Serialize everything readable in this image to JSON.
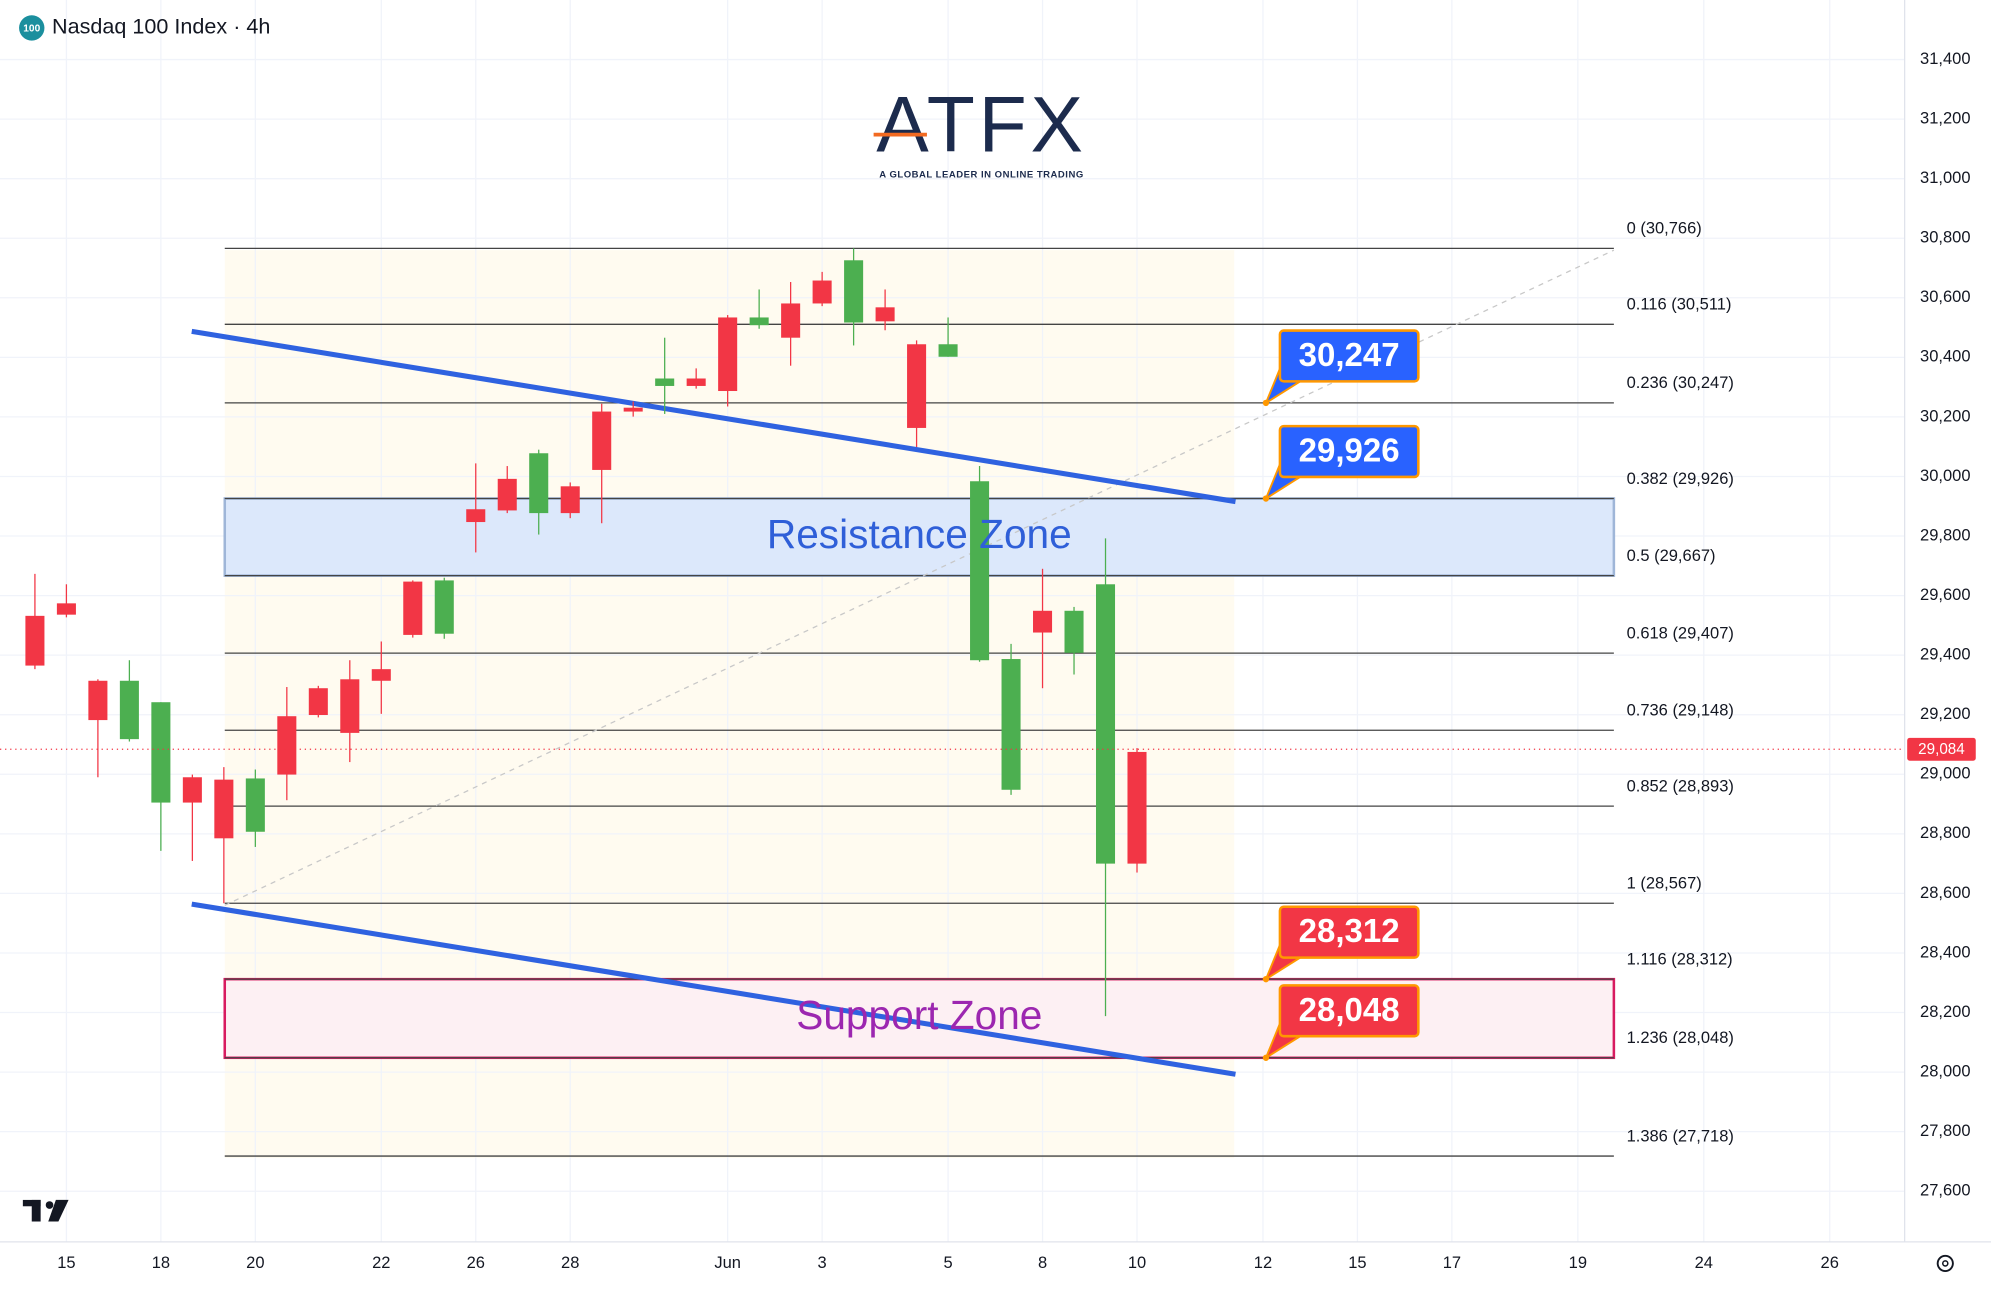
{
  "chart_data": {
    "type": "candlestick",
    "title": "Nasdaq 100 Index · 4h",
    "symbol_badge": "100",
    "categories": [
      null,
      "15",
      null,
      null,
      "18",
      null,
      null,
      "20",
      null,
      null,
      null,
      "22",
      null,
      null,
      "26",
      null,
      null,
      "28",
      null,
      null,
      null,
      null,
      "Jun",
      null,
      null,
      "3",
      null,
      null,
      null,
      "5",
      null,
      null,
      "8",
      null,
      null,
      "10",
      null,
      null,
      null,
      "12",
      null,
      null,
      "15",
      null,
      null,
      "17",
      null,
      null,
      null,
      "19",
      null,
      null,
      null,
      "24",
      null,
      null,
      null,
      "26",
      null,
      null
    ],
    "open": [
      29532,
      29574,
      29314,
      29118,
      28905,
      28990,
      28982,
      28807,
      29195,
      29289,
      29319,
      29353,
      29647,
      29472,
      29890,
      29992,
      29877,
      29967,
      30218,
      30231,
      30304,
      30329,
      30534,
      30508,
      30581,
      30658,
      30517,
      30568,
      30444,
      30402,
      29383,
      28948,
      29549,
      29408,
      28700,
      29075,
      null,
      null,
      null,
      null,
      null,
      null,
      null,
      null,
      null,
      null,
      null,
      null,
      null,
      null,
      null,
      null,
      null,
      null,
      null,
      null,
      null,
      null,
      null,
      null
    ],
    "high": [
      29673,
      29638,
      29319,
      29383,
      29242,
      28999,
      29024,
      29016,
      29293,
      29297,
      29383,
      29446,
      29651,
      29660,
      30044,
      30035,
      30090,
      29980,
      30244,
      30252,
      30466,
      30363,
      30542,
      30628,
      30653,
      30687,
      30766,
      30628,
      30457,
      30534,
      30035,
      29438,
      29690,
      29562,
      29792,
      29088,
      null,
      null,
      null,
      null,
      null,
      null,
      null,
      null,
      null,
      null,
      null,
      null,
      null,
      null,
      null,
      null,
      null,
      null,
      null,
      null,
      null,
      null,
      null,
      null
    ],
    "low": [
      29353,
      29527,
      28990,
      29110,
      28743,
      28709,
      28567,
      28756,
      28913,
      29191,
      29041,
      29203,
      29459,
      29455,
      29745,
      29877,
      29805,
      29860,
      29843,
      30201,
      30210,
      30295,
      30235,
      30496,
      30372,
      30572,
      30440,
      30491,
      30099,
      30402,
      29378,
      28931,
      29289,
      29335,
      28188,
      28670,
      null,
      null,
      null,
      null,
      null,
      null,
      null,
      null,
      null,
      null,
      null,
      null,
      null,
      null,
      null,
      null,
      null,
      null,
      null,
      null,
      null,
      null,
      null,
      null
    ],
    "close": [
      29365,
      29536,
      29182,
      29314,
      29242,
      28905,
      28785,
      28986,
      28999,
      29199,
      29139,
      29314,
      29468,
      29651,
      29847,
      29886,
      30078,
      29877,
      30022,
      30218,
      30329,
      30304,
      30287,
      30534,
      30466,
      30581,
      30726,
      30521,
      30163,
      30444,
      29984,
      29387,
      29476,
      29549,
      29638,
      28700,
      null,
      null,
      null,
      null,
      null,
      null,
      null,
      null,
      null,
      null,
      null,
      null,
      null,
      null,
      null,
      null,
      null,
      null,
      null,
      null,
      null,
      null,
      null,
      null
    ],
    "up_color": "#4caf50",
    "down_color": "#f23645",
    "ylim": [
      27430,
      31600
    ],
    "yticks": [
      {
        "value": 27600,
        "label": "27,600"
      },
      {
        "value": 27800,
        "label": "27,800"
      },
      {
        "value": 28000,
        "label": "28,000"
      },
      {
        "value": 28200,
        "label": "28,200"
      },
      {
        "value": 28400,
        "label": "28,400"
      },
      {
        "value": 28600,
        "label": "28,600"
      },
      {
        "value": 28800,
        "label": "28,800"
      },
      {
        "value": 29000,
        "label": "29,000"
      },
      {
        "value": 29200,
        "label": "29,200"
      },
      {
        "value": 29400,
        "label": "29,400"
      },
      {
        "value": 29600,
        "label": "29,600"
      },
      {
        "value": 29800,
        "label": "29,800"
      },
      {
        "value": 30000,
        "label": "30,000"
      },
      {
        "value": 30200,
        "label": "30,200"
      },
      {
        "value": 30400,
        "label": "30,400"
      },
      {
        "value": 30600,
        "label": "30,600"
      },
      {
        "value": 30800,
        "label": "30,800"
      },
      {
        "value": 31000,
        "label": "31,000"
      },
      {
        "value": 31200,
        "label": "31,200"
      },
      {
        "value": 31400,
        "label": "31,400"
      }
    ],
    "grid": true,
    "last_price": {
      "value": 29084,
      "label": "29,084"
    },
    "fib_levels": [
      {
        "value": 30766,
        "label": "0 (30,766)"
      },
      {
        "value": 30511,
        "label": "0.116 (30,511)"
      },
      {
        "value": 30247,
        "label": "0.236 (30,247)"
      },
      {
        "value": 29926,
        "label": "0.382 (29,926)"
      },
      {
        "value": 29667,
        "label": "0.5 (29,667)"
      },
      {
        "value": 29407,
        "label": "0.618 (29,407)"
      },
      {
        "value": 29148,
        "label": "0.736 (29,148)"
      },
      {
        "value": 28893,
        "label": "0.852 (28,893)"
      },
      {
        "value": 28567,
        "label": "1 (28,567)"
      },
      {
        "value": 28312,
        "label": "1.116 (28,312)"
      },
      {
        "value": 28048,
        "label": "1.236 (28,048)"
      },
      {
        "value": 27718,
        "label": "1.386 (27,718)"
      }
    ],
    "zones": [
      {
        "label": "Resistance Zone",
        "low": 29667,
        "high": 29926,
        "color": "#2f5fd8",
        "fill": "#dce8fb",
        "border": "#9fb6d8"
      },
      {
        "label": "Support Zone",
        "low": 28048,
        "high": 28312,
        "color": "#9c27b0",
        "fill": "#fdf0f3",
        "border": "#d81b60"
      }
    ],
    "callouts": [
      {
        "value": 30247,
        "label": "30,247",
        "color": "#2962ff"
      },
      {
        "value": 29926,
        "label": "29,926",
        "color": "#2962ff"
      },
      {
        "value": 28312,
        "label": "28,312",
        "color": "#f23645"
      },
      {
        "value": 28048,
        "label": "28,048",
        "color": "#f23645"
      }
    ]
  },
  "logo": {
    "name": "ATFX",
    "tagline": "A GLOBAL LEADER IN ONLINE TRADING"
  }
}
